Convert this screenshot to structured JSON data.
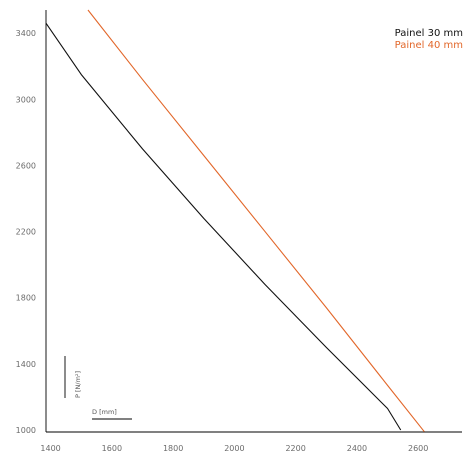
{
  "chart_data": {
    "type": "line",
    "title": "",
    "xlabel": "D [mm]",
    "ylabel": "P [N/m²]",
    "xlim": [
      1385,
      2743
    ],
    "ylim": [
      988,
      3540
    ],
    "x_ticks": [
      1400,
      1600,
      1800,
      2000,
      2200,
      2400,
      2600
    ],
    "y_ticks": [
      1000,
      1400,
      1800,
      2200,
      2600,
      3000,
      3400
    ],
    "legend_position": "top-right",
    "grid": false,
    "series": [
      {
        "name": "Painel 30 mm",
        "color": "#111111",
        "points": [
          [
            1385,
            3460
          ],
          [
            1500,
            3150
          ],
          [
            1700,
            2700
          ],
          [
            1900,
            2280
          ],
          [
            2100,
            1880
          ],
          [
            2300,
            1500
          ],
          [
            2500,
            1130
          ],
          [
            2543,
            1000
          ]
        ]
      },
      {
        "name": "Painel 40 mm",
        "color": "#e2672a",
        "points": [
          [
            1522,
            3540
          ],
          [
            1700,
            3120
          ],
          [
            1900,
            2660
          ],
          [
            2100,
            2200
          ],
          [
            2300,
            1740
          ],
          [
            2500,
            1270
          ],
          [
            2620,
            990
          ]
        ]
      }
    ]
  }
}
